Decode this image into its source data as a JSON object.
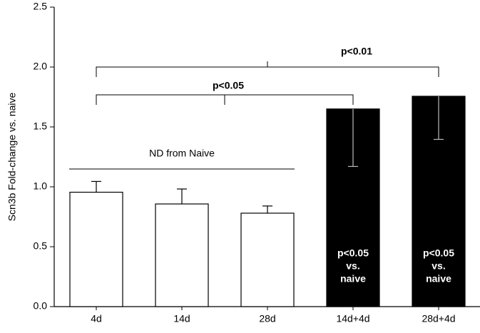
{
  "chart_data": {
    "type": "bar",
    "y_label": "Scn3b Fold-change vs. naive",
    "categories": [
      "4d",
      "14d",
      "28d",
      "14d+4d",
      "28d+4d"
    ],
    "values": [
      0.955,
      0.857,
      0.78,
      1.65,
      1.756
    ],
    "errors": [
      0.09,
      0.125,
      0.06,
      0.48,
      0.36
    ],
    "error_direction": [
      "up",
      "up",
      "up",
      "down",
      "down"
    ],
    "colors": [
      "#ffffff",
      "#ffffff",
      "#ffffff",
      "#000000",
      "#000000"
    ],
    "ylim": [
      0,
      2.5
    ],
    "yticks": [
      {
        "value": 0,
        "label": "0.0"
      },
      {
        "value": 0.5,
        "label": "0.5"
      },
      {
        "value": 1,
        "label": "1.0"
      },
      {
        "value": 1.5,
        "label": "1.5"
      },
      {
        "value": 2,
        "label": "2.0"
      },
      {
        "value": 2.5,
        "label": "2.5"
      }
    ],
    "brackets": [
      {
        "label": "p<0.01",
        "from": 0,
        "to": 4
      },
      {
        "label": "p<0.05",
        "from": 0,
        "to": 3
      },
      {
        "label": "ND from Naive",
        "from": 0,
        "to": 2
      }
    ],
    "bar_annotations": [
      {
        "category": 3,
        "lines": [
          "p<0.05",
          "vs.",
          "naive"
        ]
      },
      {
        "category": 4,
        "lines": [
          "p<0.05",
          "vs.",
          "naive"
        ]
      }
    ]
  }
}
